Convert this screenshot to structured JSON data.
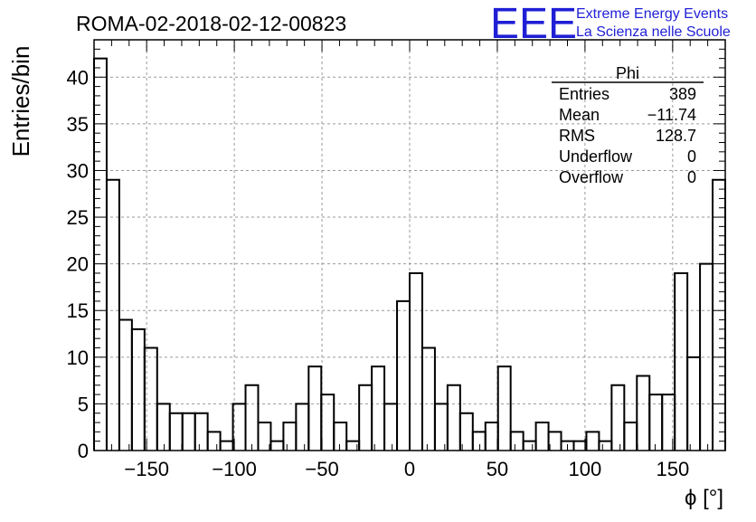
{
  "header": {
    "run_title": "ROMA-02-2018-02-12-00823",
    "logo_text": "EEE",
    "brand_line1": "Extreme Energy Events",
    "brand_line2": "La Scienza nelle Scuole"
  },
  "stats_box": {
    "title": "Phi",
    "rows": [
      {
        "label": "Entries",
        "value": "389"
      },
      {
        "label": "Mean",
        "value": "−11.74"
      },
      {
        "label": "RMS",
        "value": "128.7"
      },
      {
        "label": "Underflow",
        "value": "0"
      },
      {
        "label": "Overflow",
        "value": "0"
      }
    ]
  },
  "colors": {
    "logo": "#1f1fd6",
    "grid": "#9a9a9a",
    "line": "#000000"
  },
  "chart_data": {
    "type": "bar",
    "style": "step-histogram",
    "xlabel": "ϕ [°]",
    "ylabel": "Entries/bin",
    "xlim": [
      -180,
      180
    ],
    "ylim": [
      0,
      44
    ],
    "bin_width": 7.2,
    "x_ticks": [
      -150,
      -100,
      -50,
      0,
      50,
      100,
      150
    ],
    "x_tick_labels": [
      "−150",
      "−100",
      "−50",
      "0",
      "50",
      "100",
      "150"
    ],
    "y_ticks": [
      0,
      5,
      10,
      15,
      20,
      25,
      30,
      35,
      40
    ],
    "y_tick_labels": [
      "0",
      "5",
      "10",
      "15",
      "20",
      "25",
      "30",
      "35",
      "40"
    ],
    "grid": true,
    "values": [
      42,
      29,
      14,
      13,
      11,
      5,
      4,
      4,
      4,
      2,
      1,
      5,
      7,
      3,
      1,
      3,
      5,
      9,
      6,
      3,
      1,
      7,
      9,
      5,
      16,
      19,
      11,
      5,
      7,
      4,
      2,
      3,
      9,
      2,
      1,
      3,
      2,
      1,
      1,
      2,
      1,
      7,
      3,
      8,
      6,
      6,
      19,
      10,
      20,
      29
    ]
  }
}
